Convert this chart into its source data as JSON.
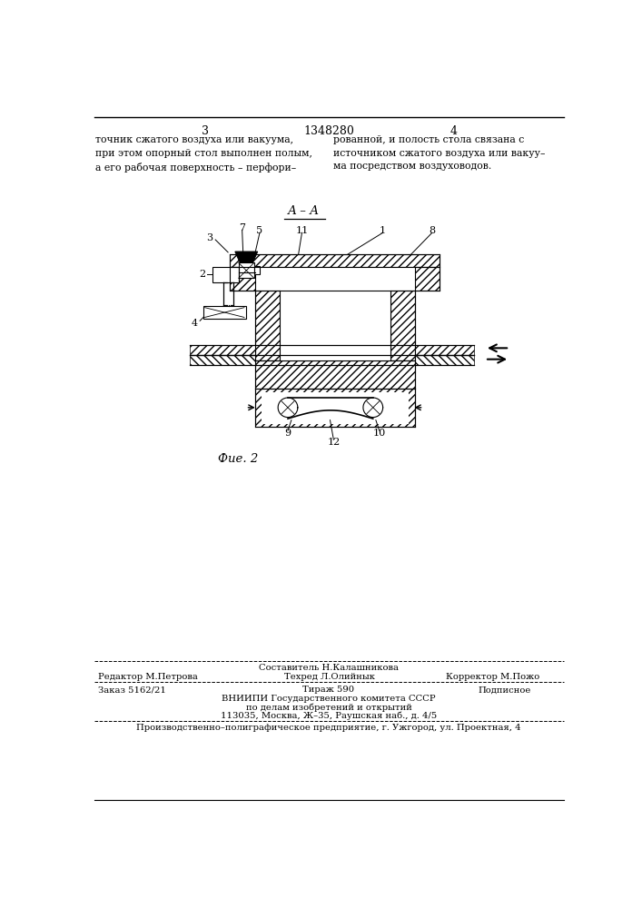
{
  "page_number_left": "3",
  "page_number_center": "1348280",
  "page_number_right": "4",
  "text_left": "точник сжатого воздуха или вакуума,\nпри этом опорный стол выполнен полым,\nа его рабочая поверхность – перфори–",
  "text_right": "рованной, и полость стола связана с\nисточником сжатого воздуха или вакуу–\nма посредством воздуховодов.",
  "section_label": "А – А",
  "fig_label": "Фие. 2",
  "footer_editor": "Редактор М.Петрова",
  "footer_composer": "Составитель Н.Калашникова",
  "footer_techred": "Техред Л.Олийнык",
  "footer_corrector": "Корректор М.Пожо",
  "footer_order": "Заказ 5162/21",
  "footer_print": "Тираж 590",
  "footer_signed": "Подписное",
  "footer_vniipi1": "ВНИИПИ Государственного комитета СССР",
  "footer_vniipi2": "по делам изобретений и открытий",
  "footer_vniipi3": "113035, Москва, Ж–35, Раушская наб., д. 4/5",
  "footer_factory": "Производственно–полиграфическое предприятие, г. Ужгород, ул. Проектная, 4",
  "bg_color": "#ffffff"
}
